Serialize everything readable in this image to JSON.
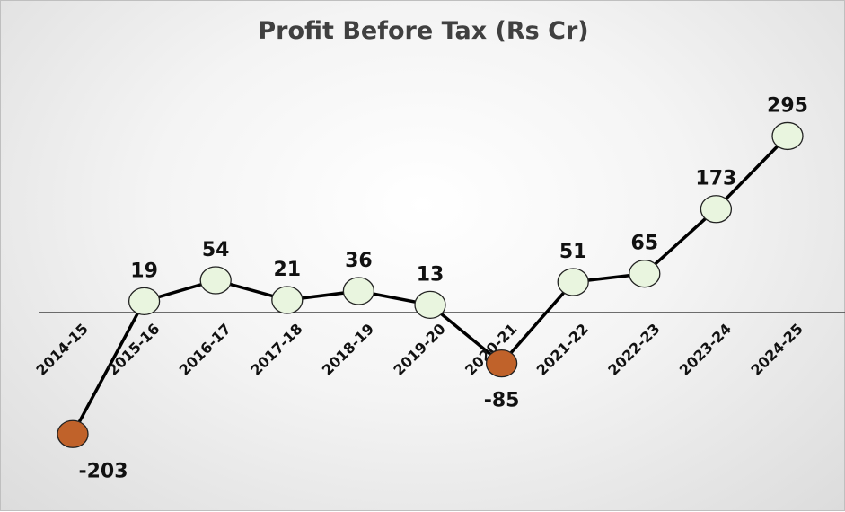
{
  "chart_data": {
    "type": "line",
    "title": "Profit Before Tax (Rs Cr)",
    "categories": [
      "2014-15",
      "2015-16",
      "2016-17",
      "2017-18",
      "2018-19",
      "2019-20",
      "2020-21",
      "2021-22",
      "2022-23",
      "2023-24",
      "2024-25"
    ],
    "series": [
      {
        "values": [
          -203,
          19,
          54,
          21,
          36,
          13,
          -85,
          51,
          65,
          173,
          295
        ]
      }
    ],
    "data_labels": [
      "-203",
      "19",
      "54",
      "21",
      "36",
      "13",
      "-85",
      "51",
      "65",
      "173",
      "295"
    ],
    "ylim": [
      -230,
      330
    ],
    "grid": false,
    "legend": "none",
    "colors": {
      "line": "#000000",
      "positive_marker": "#e9f5df",
      "negative_marker": "#c0622a",
      "marker_outline": "#222222",
      "axis": "#404040"
    }
  }
}
